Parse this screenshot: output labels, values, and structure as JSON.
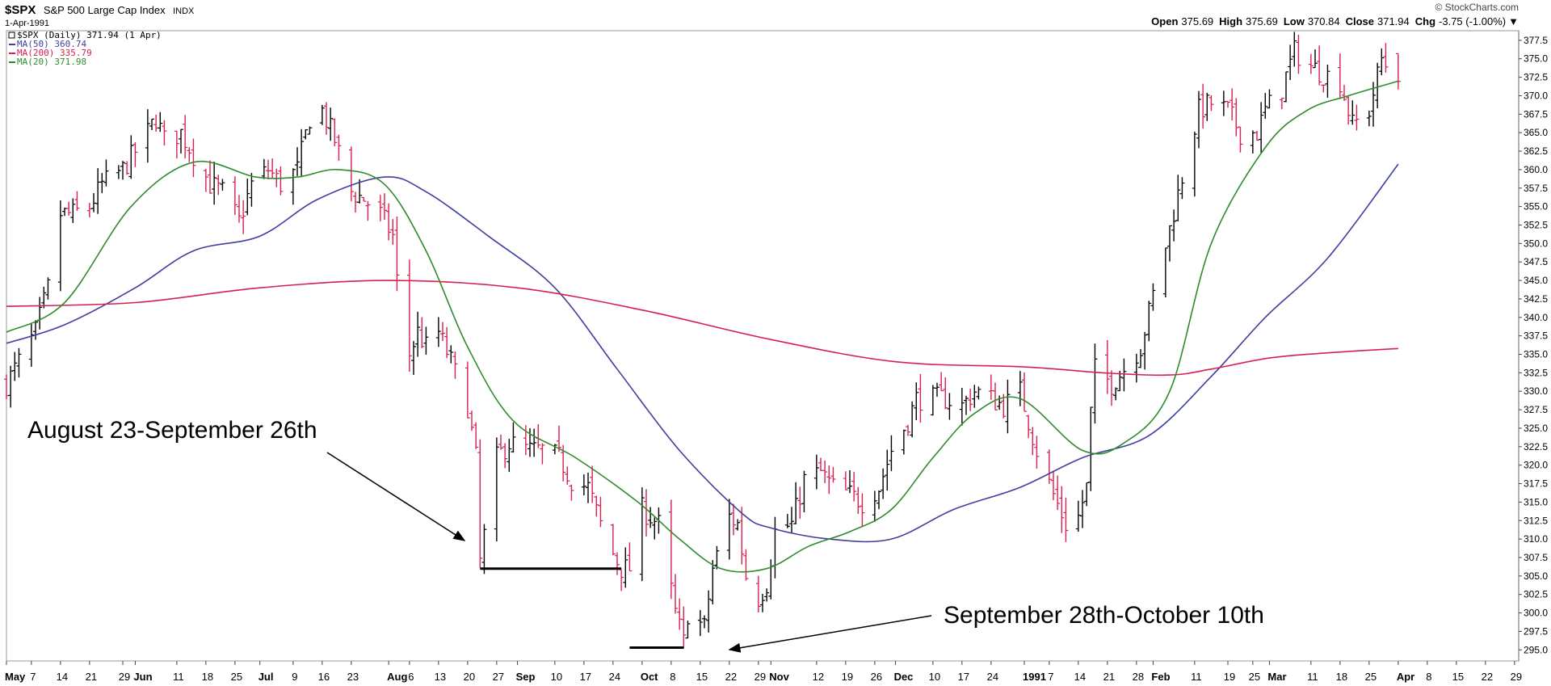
{
  "header": {
    "symbol": "$SPX",
    "name": "S&P 500 Large Cap Index",
    "exchange": "INDX",
    "date": "1-Apr-1991",
    "brand": "© StockCharts.com",
    "ohlc": [
      {
        "label": "Open",
        "value": "375.69"
      },
      {
        "label": "High",
        "value": "375.69"
      },
      {
        "label": "Low",
        "value": "370.84"
      },
      {
        "label": "Close",
        "value": "371.94"
      },
      {
        "label": "Chg",
        "value": "-3.75 (-1.00%)"
      }
    ],
    "chg_arrow": "▼"
  },
  "legend": [
    {
      "text": "$SPX (Daily) 371.94 (1 Apr)",
      "color": "#000000"
    },
    {
      "text": "MA(50) 360.74",
      "color": "#3f3f9f"
    },
    {
      "text": "MA(200) 335.79",
      "color": "#d62050"
    },
    {
      "text": "MA(20) 371.98",
      "color": "#2e8b2e"
    }
  ],
  "chart_data": {
    "type": "line",
    "title": "$SPX S&P 500 Large Cap Index",
    "xlim": [
      "1990-05-01",
      "1991-04-30"
    ],
    "ylim": [
      293.5,
      378.8
    ],
    "y_ticks": [
      "377.5",
      "375.0",
      "372.5",
      "370.0",
      "367.5",
      "365.0",
      "362.5",
      "360.0",
      "357.5",
      "355.0",
      "352.5",
      "350.0",
      "347.5",
      "345.0",
      "342.5",
      "340.0",
      "337.5",
      "335.0",
      "332.5",
      "330.0",
      "327.5",
      "325.0",
      "322.5",
      "320.0",
      "317.5",
      "315.0",
      "312.5",
      "310.0",
      "307.5",
      "305.0",
      "302.5",
      "300.0",
      "297.5",
      "295.0"
    ],
    "x_ticks": [
      {
        "date": "1990-05-01",
        "label": "May",
        "bold": true
      },
      {
        "date": "1990-05-07",
        "label": "7",
        "bold": false
      },
      {
        "date": "1990-05-14",
        "label": "14",
        "bold": false
      },
      {
        "date": "1990-05-21",
        "label": "21",
        "bold": false
      },
      {
        "date": "1990-05-29",
        "label": "29",
        "bold": false
      },
      {
        "date": "1990-06-01",
        "label": "Jun",
        "bold": true
      },
      {
        "date": "1990-06-11",
        "label": "11",
        "bold": false
      },
      {
        "date": "1990-06-18",
        "label": "18",
        "bold": false
      },
      {
        "date": "1990-06-25",
        "label": "25",
        "bold": false
      },
      {
        "date": "1990-07-01",
        "label": "Jul",
        "bold": true
      },
      {
        "date": "1990-07-09",
        "label": "9",
        "bold": false
      },
      {
        "date": "1990-07-16",
        "label": "16",
        "bold": false
      },
      {
        "date": "1990-07-23",
        "label": "23",
        "bold": false
      },
      {
        "date": "1990-08-01",
        "label": "Aug",
        "bold": true
      },
      {
        "date": "1990-08-06",
        "label": "6",
        "bold": false
      },
      {
        "date": "1990-08-13",
        "label": "13",
        "bold": false
      },
      {
        "date": "1990-08-20",
        "label": "20",
        "bold": false
      },
      {
        "date": "1990-08-27",
        "label": "27",
        "bold": false
      },
      {
        "date": "1990-09-01",
        "label": "Sep",
        "bold": true
      },
      {
        "date": "1990-09-10",
        "label": "10",
        "bold": false
      },
      {
        "date": "1990-09-17",
        "label": "17",
        "bold": false
      },
      {
        "date": "1990-09-24",
        "label": "24",
        "bold": false
      },
      {
        "date": "1990-10-01",
        "label": "Oct",
        "bold": true
      },
      {
        "date": "1990-10-08",
        "label": "8",
        "bold": false
      },
      {
        "date": "1990-10-15",
        "label": "15",
        "bold": false
      },
      {
        "date": "1990-10-22",
        "label": "22",
        "bold": false
      },
      {
        "date": "1990-10-29",
        "label": "29",
        "bold": false
      },
      {
        "date": "1990-11-01",
        "label": "Nov",
        "bold": true
      },
      {
        "date": "1990-11-12",
        "label": "12",
        "bold": false
      },
      {
        "date": "1990-11-19",
        "label": "19",
        "bold": false
      },
      {
        "date": "1990-11-26",
        "label": "26",
        "bold": false
      },
      {
        "date": "1990-12-01",
        "label": "Dec",
        "bold": true
      },
      {
        "date": "1990-12-10",
        "label": "10",
        "bold": false
      },
      {
        "date": "1990-12-17",
        "label": "17",
        "bold": false
      },
      {
        "date": "1990-12-24",
        "label": "24",
        "bold": false
      },
      {
        "date": "1991-01-01",
        "label": "1991",
        "bold": true
      },
      {
        "date": "1991-01-07",
        "label": "7",
        "bold": false
      },
      {
        "date": "1991-01-14",
        "label": "14",
        "bold": false
      },
      {
        "date": "1991-01-21",
        "label": "21",
        "bold": false
      },
      {
        "date": "1991-01-28",
        "label": "28",
        "bold": false
      },
      {
        "date": "1991-02-01",
        "label": "Feb",
        "bold": true
      },
      {
        "date": "1991-02-11",
        "label": "11",
        "bold": false
      },
      {
        "date": "1991-02-19",
        "label": "19",
        "bold": false
      },
      {
        "date": "1991-02-25",
        "label": "25",
        "bold": false
      },
      {
        "date": "1991-03-01",
        "label": "Mar",
        "bold": true
      },
      {
        "date": "1991-03-11",
        "label": "11",
        "bold": false
      },
      {
        "date": "1991-03-18",
        "label": "18",
        "bold": false
      },
      {
        "date": "1991-03-25",
        "label": "25",
        "bold": false
      },
      {
        "date": "1991-04-01",
        "label": "Apr",
        "bold": true
      },
      {
        "date": "1991-04-08",
        "label": "8",
        "bold": false
      },
      {
        "date": "1991-04-15",
        "label": "15",
        "bold": false
      },
      {
        "date": "1991-04-22",
        "label": "22",
        "bold": false
      },
      {
        "date": "1991-04-29",
        "label": "29",
        "bold": false
      }
    ],
    "price_close_anchors": [
      [
        "1990-05-01",
        331
      ],
      [
        "1990-05-04",
        334
      ],
      [
        "1990-05-08",
        338
      ],
      [
        "1990-05-11",
        344
      ],
      [
        "1990-05-14",
        354
      ],
      [
        "1990-05-17",
        354
      ],
      [
        "1990-05-21",
        355
      ],
      [
        "1990-05-24",
        358
      ],
      [
        "1990-05-29",
        360
      ],
      [
        "1990-06-04",
        365
      ],
      [
        "1990-06-06",
        367
      ],
      [
        "1990-06-08",
        364
      ],
      [
        "1990-06-12",
        365
      ],
      [
        "1990-06-15",
        362
      ],
      [
        "1990-06-19",
        358
      ],
      [
        "1990-06-22",
        357
      ],
      [
        "1990-06-26",
        353
      ],
      [
        "1990-06-29",
        358
      ],
      [
        "1990-07-03",
        360
      ],
      [
        "1990-07-06",
        358
      ],
      [
        "1990-07-10",
        360
      ],
      [
        "1990-07-13",
        367
      ],
      [
        "1990-07-16",
        368
      ],
      [
        "1990-07-19",
        364
      ],
      [
        "1990-07-23",
        357
      ],
      [
        "1990-07-26",
        356
      ],
      [
        "1990-07-30",
        354
      ],
      [
        "1990-08-02",
        351
      ],
      [
        "1990-08-03",
        345
      ],
      [
        "1990-08-06",
        335
      ],
      [
        "1990-08-08",
        338
      ],
      [
        "1990-08-10",
        336
      ],
      [
        "1990-08-13",
        338
      ],
      [
        "1990-08-16",
        334
      ],
      [
        "1990-08-20",
        328
      ],
      [
        "1990-08-22",
        321
      ],
      [
        "1990-08-23",
        307
      ],
      [
        "1990-08-27",
        321
      ],
      [
        "1990-08-30",
        323
      ],
      [
        "1990-09-04",
        322
      ],
      [
        "1990-09-07",
        322
      ],
      [
        "1990-09-11",
        321
      ],
      [
        "1990-09-14",
        318
      ],
      [
        "1990-09-18",
        317
      ],
      [
        "1990-09-21",
        312
      ],
      [
        "1990-09-24",
        308
      ],
      [
        "1990-09-26",
        306
      ],
      [
        "1990-09-28",
        306
      ],
      [
        "1990-10-01",
        314
      ],
      [
        "1990-10-03",
        313
      ],
      [
        "1990-10-05",
        312
      ],
      [
        "1990-10-09",
        300
      ],
      [
        "1990-10-11",
        296
      ],
      [
        "1990-10-12",
        300
      ],
      [
        "1990-10-16",
        298
      ],
      [
        "1990-10-18",
        306
      ],
      [
        "1990-10-22",
        313
      ],
      [
        "1990-10-24",
        312
      ],
      [
        "1990-10-26",
        305
      ],
      [
        "1990-10-29",
        302
      ],
      [
        "1990-10-31",
        304
      ],
      [
        "1990-11-02",
        311
      ],
      [
        "1990-11-06",
        312
      ],
      [
        "1990-11-09",
        318
      ],
      [
        "1990-11-13",
        319
      ],
      [
        "1990-11-16",
        317
      ],
      [
        "1990-11-20",
        316
      ],
      [
        "1990-11-23",
        315
      ],
      [
        "1990-11-27",
        317
      ],
      [
        "1990-11-30",
        322
      ],
      [
        "1990-12-04",
        326
      ],
      [
        "1990-12-06",
        329
      ],
      [
        "1990-12-10",
        329
      ],
      [
        "1990-12-13",
        329
      ],
      [
        "1990-12-17",
        328
      ],
      [
        "1990-12-20",
        330
      ],
      [
        "1990-12-24",
        329
      ],
      [
        "1990-12-27",
        328
      ],
      [
        "1990-12-31",
        330
      ],
      [
        "1991-01-04",
        322
      ],
      [
        "1991-01-08",
        316
      ],
      [
        "1991-01-11",
        312
      ],
      [
        "1991-01-14",
        313
      ],
      [
        "1991-01-16",
        317
      ],
      [
        "1991-01-17",
        327
      ],
      [
        "1991-01-18",
        333
      ],
      [
        "1991-01-22",
        331
      ],
      [
        "1991-01-25",
        333
      ],
      [
        "1991-01-29",
        336
      ],
      [
        "1991-02-01",
        343
      ],
      [
        "1991-02-05",
        352
      ],
      [
        "1991-02-08",
        359
      ],
      [
        "1991-02-12",
        368
      ],
      [
        "1991-02-15",
        369
      ],
      [
        "1991-02-19",
        368
      ],
      [
        "1991-02-22",
        365
      ],
      [
        "1991-02-26",
        365
      ],
      [
        "1991-02-28",
        368
      ],
      [
        "1991-03-04",
        371
      ],
      [
        "1991-03-07",
        376
      ],
      [
        "1991-03-11",
        374
      ],
      [
        "1991-03-14",
        373
      ],
      [
        "1991-03-18",
        372
      ],
      [
        "1991-03-21",
        366
      ],
      [
        "1991-03-25",
        368
      ],
      [
        "1991-03-28",
        375
      ],
      [
        "1991-04-01",
        371.94
      ]
    ],
    "last_bar": {
      "date": "1991-04-01",
      "open": 375.69,
      "high": 375.69,
      "low": 370.84,
      "close": 371.94
    },
    "series": [
      {
        "name": "MA(50)",
        "color": "#3f3f9f",
        "points": [
          [
            "1990-05-01",
            336.5
          ],
          [
            "1990-05-15",
            339
          ],
          [
            "1990-06-01",
            344
          ],
          [
            "1990-06-15",
            349
          ],
          [
            "1990-07-01",
            351
          ],
          [
            "1990-07-15",
            356
          ],
          [
            "1990-07-31",
            359
          ],
          [
            "1990-08-10",
            357
          ],
          [
            "1990-08-25",
            351
          ],
          [
            "1990-09-10",
            344
          ],
          [
            "1990-09-25",
            333
          ],
          [
            "1990-10-10",
            322
          ],
          [
            "1990-10-25",
            313.5
          ],
          [
            "1990-11-01",
            311.5
          ],
          [
            "1990-11-15",
            310
          ],
          [
            "1990-11-30",
            310
          ],
          [
            "1990-12-15",
            314
          ],
          [
            "1990-12-31",
            317
          ],
          [
            "1991-01-15",
            321
          ],
          [
            "1991-01-31",
            324
          ],
          [
            "1991-02-15",
            332
          ],
          [
            "1991-02-28",
            340
          ],
          [
            "1991-03-15",
            348
          ],
          [
            "1991-04-01",
            360.74
          ]
        ]
      },
      {
        "name": "MA(200)",
        "color": "#d62050",
        "points": [
          [
            "1990-05-01",
            341.5
          ],
          [
            "1990-06-01",
            342
          ],
          [
            "1990-07-01",
            344
          ],
          [
            "1990-08-01",
            345
          ],
          [
            "1990-09-01",
            344
          ],
          [
            "1990-10-01",
            341
          ],
          [
            "1990-11-01",
            337
          ],
          [
            "1990-12-01",
            334
          ],
          [
            "1991-01-01",
            333.3
          ],
          [
            "1991-01-20",
            332.5
          ],
          [
            "1991-02-05",
            332.2
          ],
          [
            "1991-02-15",
            333
          ],
          [
            "1991-03-01",
            334.5
          ],
          [
            "1991-03-15",
            335.2
          ],
          [
            "1991-04-01",
            335.79
          ]
        ]
      },
      {
        "name": "MA(20)",
        "color": "#2e8b2e",
        "points": [
          [
            "1990-05-01",
            338
          ],
          [
            "1990-05-15",
            342
          ],
          [
            "1990-05-31",
            355
          ],
          [
            "1990-06-15",
            361
          ],
          [
            "1990-06-30",
            359
          ],
          [
            "1990-07-10",
            359
          ],
          [
            "1990-07-20",
            360
          ],
          [
            "1990-07-31",
            358
          ],
          [
            "1990-08-10",
            349
          ],
          [
            "1990-08-20",
            336
          ],
          [
            "1990-08-31",
            326
          ],
          [
            "1990-09-15",
            321
          ],
          [
            "1990-09-30",
            315
          ],
          [
            "1990-10-10",
            310
          ],
          [
            "1990-10-20",
            306
          ],
          [
            "1990-10-31",
            306
          ],
          [
            "1990-11-10",
            309
          ],
          [
            "1990-11-20",
            311
          ],
          [
            "1990-11-30",
            314
          ],
          [
            "1990-12-10",
            321
          ],
          [
            "1990-12-20",
            327
          ],
          [
            "1990-12-31",
            329
          ],
          [
            "1991-01-15",
            322
          ],
          [
            "1991-01-25",
            323
          ],
          [
            "1991-02-05",
            330
          ],
          [
            "1991-02-15",
            350
          ],
          [
            "1991-02-28",
            363
          ],
          [
            "1991-03-10",
            368
          ],
          [
            "1991-03-20",
            370
          ],
          [
            "1991-04-01",
            371.98
          ]
        ]
      }
    ],
    "annotations": [
      {
        "text": "August 23-September 26th"
      },
      {
        "text": "September 28th-October 10th"
      }
    ],
    "support_lines": [
      {
        "from": "1990-08-23",
        "to": "1990-09-26",
        "y": 306
      },
      {
        "from": "1990-09-28",
        "to": "1990-10-11",
        "y": 295.3
      }
    ]
  }
}
